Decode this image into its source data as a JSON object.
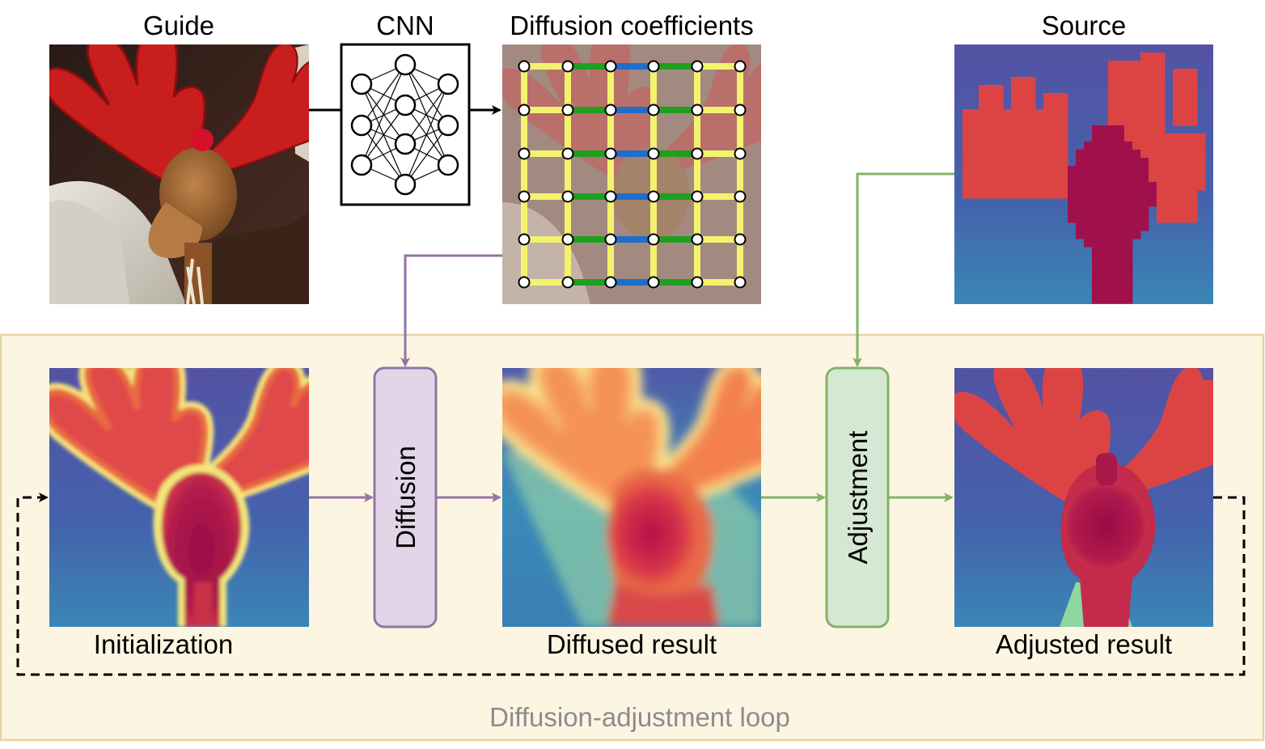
{
  "labels": {
    "guide": "Guide",
    "cnn": "CNN",
    "coefficients": "Diffusion coefficients",
    "source": "Source",
    "initialization": "Initialization",
    "diffused": "Diffused result",
    "adjusted": "Adjusted result",
    "loop": "Diffusion-adjustment loop"
  },
  "blocks": {
    "diffusion": "Diffusion",
    "adjustment": "Adjustment"
  },
  "colors": {
    "loop_bg": "#fcf5e2",
    "loop_border": "#e6d3a3",
    "diffusion_fill": "#e1d5e7",
    "diffusion_stroke": "#9673a6",
    "adjustment_fill": "#d5e8d4",
    "adjustment_stroke": "#82b366",
    "edge_yellow": "#f3f36e",
    "edge_green": "#1ea01e",
    "edge_blue": "#1f6ecc",
    "background_blue": "#4a56a6",
    "foreground_red": "#dc4444",
    "body_crimson": "#a0104c"
  },
  "icons": {
    "cnn": "neural-network-icon",
    "guide": "reindeer-photo",
    "source": "low-res-depth-map",
    "initialization": "initial-depth-map",
    "diffused": "diffused-depth-map",
    "adjusted": "adjusted-depth-map"
  }
}
